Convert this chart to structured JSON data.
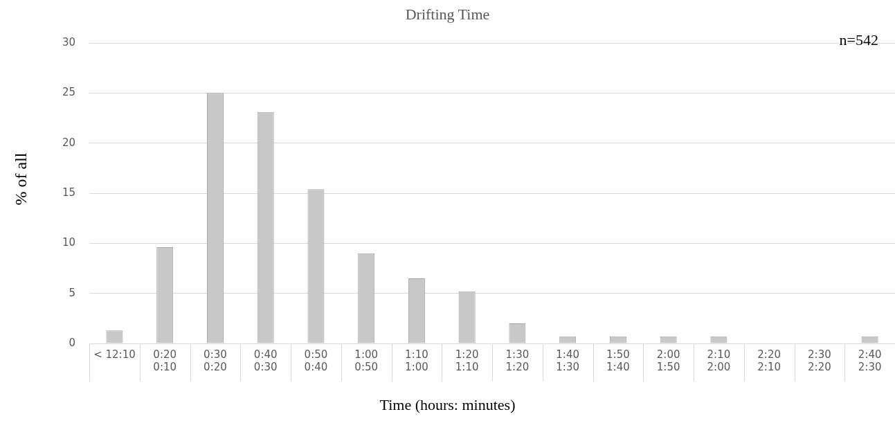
{
  "chart_data": {
    "type": "bar",
    "title": "Drifting Time",
    "xlabel": "Time (hours: minutes)",
    "ylabel": "% of all",
    "categories": [
      "< 12:10",
      "0:20\n0:10",
      "0:30\n0:20",
      "0:40\n0:30",
      "0:50\n0:40",
      "1:00\n0:50",
      "1:10\n1:00",
      "1:20\n1:10",
      "1:30\n1:20",
      "1:40\n1:30",
      "1:50\n1:40",
      "2:00\n1:50",
      "2:10\n2:00",
      "2:20\n2:10",
      "2:30\n2:20",
      "2:40\n2:30"
    ],
    "values": [
      1.3,
      9.6,
      25.0,
      23.1,
      15.4,
      9.0,
      6.5,
      5.2,
      2.0,
      0.7,
      0.7,
      0.7,
      0.7,
      0,
      0,
      0.7
    ],
    "color": "#c8c8c8",
    "ylim": [
      0,
      30
    ],
    "yticks": [
      0,
      5,
      10,
      15,
      20,
      25,
      30
    ],
    "grid": "y",
    "legend": false,
    "annotations": [
      "n=542"
    ]
  }
}
